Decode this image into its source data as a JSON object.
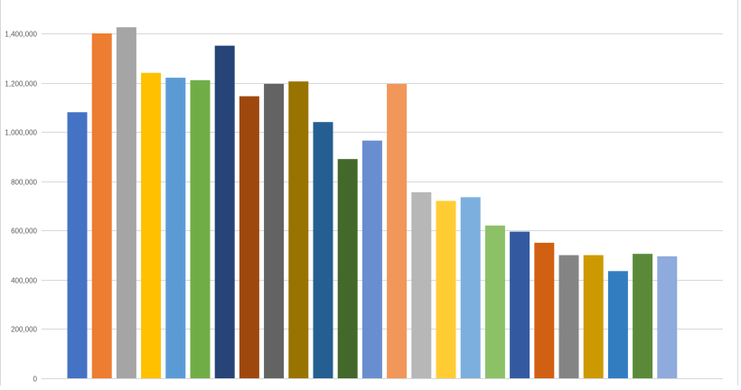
{
  "chart_data": {
    "type": "bar",
    "values": [
      1080000,
      1400000,
      1425000,
      1240000,
      1220000,
      1210000,
      1350000,
      1145000,
      1195000,
      1205000,
      1040000,
      890000,
      965000,
      1195000,
      755000,
      720000,
      735000,
      620000,
      595000,
      550000,
      500000,
      500000,
      435000,
      505000,
      495000
    ],
    "colors": [
      "#4472C4",
      "#ED7D31",
      "#A5A5A5",
      "#FFC000",
      "#5B9BD5",
      "#70AD47",
      "#264478",
      "#9E480E",
      "#636363",
      "#997300",
      "#255E91",
      "#43682B",
      "#698ED0",
      "#F1975A",
      "#B7B7B7",
      "#FFCD33",
      "#7CAFDD",
      "#8CC168",
      "#335AA1",
      "#D26012",
      "#848484",
      "#CC9A00",
      "#327DC2",
      "#5A8A39",
      "#8FAADC"
    ],
    "yticks": [
      {
        "value": 0,
        "label": "0"
      },
      {
        "value": 200000,
        "label": "200,000"
      },
      {
        "value": 400000,
        "label": "400,000"
      },
      {
        "value": 600000,
        "label": "600,000"
      },
      {
        "value": 800000,
        "label": "800,000"
      },
      {
        "value": 1000000,
        "label": "1,000,000"
      },
      {
        "value": 1200000,
        "label": "1,200,000"
      },
      {
        "value": 1400000,
        "label": "1,400,000"
      }
    ],
    "ylim": [
      0,
      1400000
    ],
    "grid": true,
    "title": "",
    "xlabel": "",
    "ylabel": ""
  }
}
